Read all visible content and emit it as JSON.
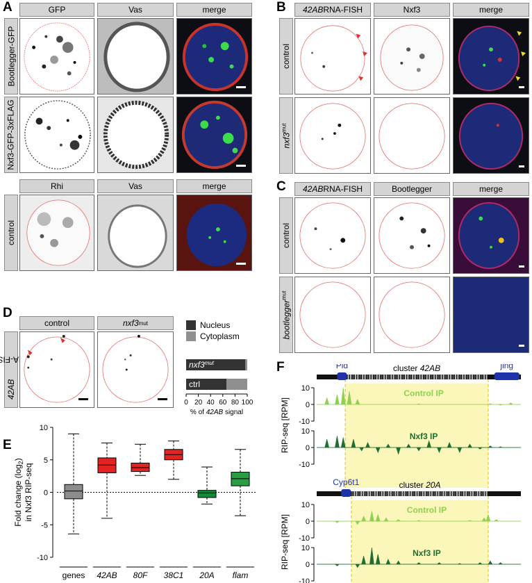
{
  "panels": {
    "A": {
      "label": "A",
      "top_headers": [
        "GFP",
        "Vas",
        "merge"
      ],
      "rows": [
        "Bootlegger-GFP",
        "Nxf3-GFP-3xFLAG"
      ],
      "bottom_headers": [
        "Rhi",
        "Vas",
        "merge"
      ],
      "bottom_row": "control"
    },
    "B": {
      "label": "B",
      "headers": [
        "42AB RNA-FISH",
        "Nxf3",
        "merge"
      ],
      "rows": [
        "control",
        "nxf3mut"
      ]
    },
    "C": {
      "label": "C",
      "headers": [
        "42AB RNA-FISH",
        "Bootlegger",
        "merge"
      ],
      "rows": [
        "control",
        "bootleggermut"
      ]
    },
    "D": {
      "label": "D",
      "headers": [
        "control",
        "nxf3mut"
      ],
      "side": "42AB RNA-FISH",
      "legend": [
        "Nucleus",
        "Cytoplasm"
      ],
      "bars": [
        {
          "label": "nxf3mut",
          "nucleus": 97
        },
        {
          "label": "ctrl",
          "nucleus": 66
        }
      ],
      "xticks": [
        "0",
        "20",
        "40",
        "60",
        "80",
        "100"
      ],
      "xlabel": "% of 42AB signal"
    },
    "E": {
      "label": "E"
    },
    "F": {
      "label": "F"
    }
  },
  "chart_data": [
    {
      "type": "bar",
      "title": "",
      "xlabel": "% of 42AB signal",
      "ylabel": "",
      "categories": [
        "nxf3mut",
        "ctrl"
      ],
      "xlim": [
        0,
        100
      ],
      "series": [
        {
          "name": "Nucleus",
          "values": [
            97,
            66
          ]
        },
        {
          "name": "Cytoplasm",
          "values": [
            3,
            34
          ]
        }
      ],
      "legend": "top-right"
    },
    {
      "type": "box",
      "title": "",
      "xlabel": "",
      "ylabel": "Fold change (log2) in Nxf3 RIP-seq",
      "ylim": [
        -10,
        10
      ],
      "categories": [
        "genes",
        "42AB",
        "80F",
        "38C1",
        "20A",
        "flam"
      ],
      "yticks": [
        "10",
        "5",
        "0",
        "-5",
        "-10"
      ],
      "boxes": [
        {
          "q1": -1,
          "median": 0.2,
          "q3": 1.2,
          "whislo": -6.4,
          "whishi": 9,
          "color": "#8c8c8c"
        },
        {
          "q1": 3,
          "median": 4.2,
          "q3": 5.3,
          "whislo": -4,
          "whishi": 7.6,
          "color": "#e32222"
        },
        {
          "q1": 3.2,
          "median": 3.8,
          "q3": 4.5,
          "whislo": 2.6,
          "whishi": 7.4,
          "color": "#e32222"
        },
        {
          "q1": 5,
          "median": 5.8,
          "q3": 6.6,
          "whislo": 2,
          "whishi": 7.9,
          "color": "#e32222"
        },
        {
          "q1": -0.8,
          "median": -0.1,
          "q3": 0.3,
          "whislo": -1.8,
          "whishi": 3.9,
          "color": "#168a3a"
        },
        {
          "q1": 1,
          "median": 2.1,
          "q3": 3.1,
          "whislo": -3.6,
          "whishi": 6.6,
          "color": "#2a9d44"
        }
      ]
    },
    {
      "type": "area",
      "title": "cluster 42AB",
      "ylabel": "RIP-seq [RPM]",
      "ylim": [
        -10,
        10
      ],
      "genes": [
        "Pld",
        "jing"
      ],
      "tracks": [
        "Control IP",
        "Nxf3 IP"
      ],
      "yticks": [
        "10",
        "0",
        "-10"
      ]
    },
    {
      "type": "area",
      "title": "cluster 20A",
      "ylabel": "RIP-seq [RPM]",
      "ylim": [
        -10,
        10
      ],
      "genes": [
        "Cyp6t1"
      ],
      "tracks": [
        "Control IP",
        "Nxf3 IP"
      ],
      "yticks": [
        "10",
        "0",
        "-10"
      ]
    }
  ],
  "text": {
    "E_ylabel1": "Fold change (log",
    "E_ylabel_sub": "2",
    "E_ylabel2": ")",
    "E_ylabel3": "in Nxf3 RIP-seq",
    "F_cluster1_a": "cluster ",
    "F_cluster1_b": "42AB",
    "F_cluster2_a": "cluster ",
    "F_cluster2_b": "20A",
    "F_ylabel": "RIP-seq [RPM]",
    "control_ip": "Control IP",
    "nxf3_ip": "Nxf3 IP",
    "pld": "Pld",
    "jing": "jing",
    "cyp": "Cyp6t1",
    "ab42": "42AB",
    "rna_fish": " RNA-FISH",
    "mut": "mut",
    "nxf3": "nxf3",
    "bootlegger": "bootlegger",
    "D_pct": "% of ",
    "D_sig": " signal"
  }
}
